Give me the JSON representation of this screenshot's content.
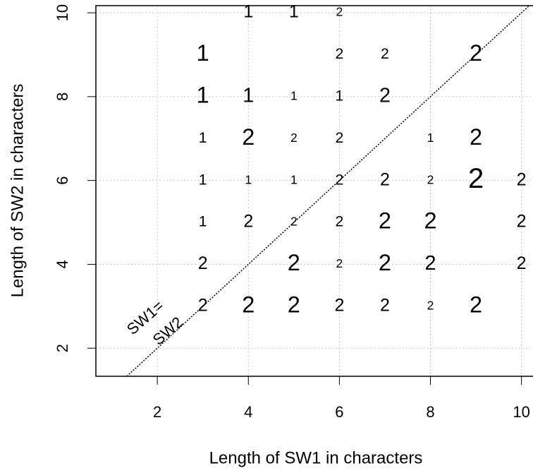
{
  "chart_data": {
    "type": "scatter",
    "xlabel": "Length of SW1 in characters",
    "ylabel": "Length of SW2 in characters",
    "annotation": [
      "SW1=",
      "SW2"
    ],
    "x": [
      4,
      5,
      6,
      3,
      6,
      7,
      9,
      3,
      4,
      5,
      6,
      7,
      3,
      4,
      5,
      6,
      8,
      9,
      3,
      4,
      5,
      6,
      7,
      8,
      9,
      10,
      3,
      4,
      5,
      6,
      7,
      8,
      10,
      3,
      5,
      6,
      7,
      8,
      10,
      3,
      4,
      5,
      6,
      7,
      8,
      9
    ],
    "y": [
      10,
      10,
      10,
      9,
      9,
      9,
      9,
      8,
      8,
      8,
      8,
      8,
      7,
      7,
      7,
      7,
      7,
      7,
      6,
      6,
      6,
      6,
      6,
      6,
      6,
      6,
      5,
      5,
      5,
      5,
      5,
      5,
      5,
      4,
      4,
      4,
      4,
      4,
      4,
      3,
      3,
      3,
      3,
      3,
      3,
      3
    ],
    "labels": [
      "1",
      "1",
      "2",
      "1",
      "2",
      "2",
      "2",
      "1",
      "1",
      "1",
      "1",
      "2",
      "1",
      "2",
      "2",
      "2",
      "1",
      "2",
      "1",
      "1",
      "1",
      "2",
      "2",
      "2",
      "2",
      "2",
      "1",
      "2",
      "2",
      "2",
      "2",
      "2",
      "2",
      "2",
      "2",
      "2",
      "2",
      "2",
      "2",
      "2",
      "2",
      "2",
      "2",
      "2",
      "2",
      "2"
    ],
    "sizes": [
      2,
      2,
      1,
      3,
      1.5,
      1.5,
      3,
      3,
      2.5,
      1,
      1.5,
      2.5,
      1.5,
      3,
      1,
      1.5,
      1,
      3,
      1.5,
      1,
      1,
      1.5,
      2,
      1,
      4,
      2,
      1.5,
      2,
      1,
      1.5,
      3,
      3,
      2,
      2,
      3,
      1,
      3,
      2.5,
      2,
      2,
      3,
      3,
      2,
      2,
      1,
      3
    ],
    "xlim": [
      0.65,
      10.3
    ],
    "ylim": [
      1.33,
      10.17
    ],
    "xticks": [
      2,
      4,
      6,
      8,
      10
    ],
    "yticks": [
      2,
      4,
      6,
      8,
      10
    ],
    "grid": true,
    "diagonal": true
  }
}
